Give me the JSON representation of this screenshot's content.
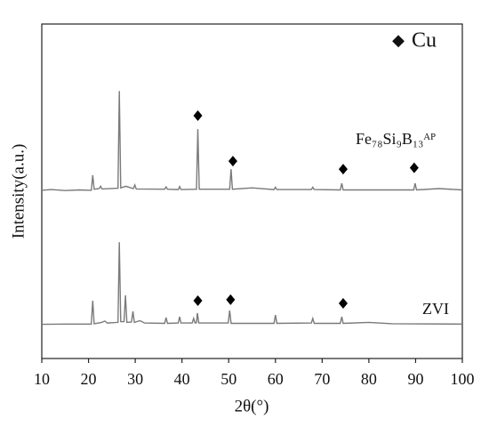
{
  "chart_data": {
    "type": "line",
    "xlabel": "2θ(°)",
    "ylabel": "Intensity(a.u.)",
    "xlim": [
      10,
      100
    ],
    "xticks": [
      10,
      20,
      30,
      40,
      50,
      60,
      70,
      80,
      90,
      100
    ],
    "ylim": [
      0,
      100
    ],
    "legend": {
      "marker": "◆",
      "label": "Cu",
      "position": "upper right"
    },
    "series": [
      {
        "name": "Fe₇₈Si₉B₁₃ᴬᴾ",
        "color": "#7a7a7a",
        "x": [
          10,
          12,
          15,
          18,
          20.6,
          20.9,
          21.2,
          22.3,
          22.6,
          22.9,
          26.3,
          26.6,
          26.9,
          28,
          29.6,
          29.9,
          30.2,
          36.3,
          36.6,
          36.9,
          39.2,
          39.5,
          39.8,
          43.1,
          43.4,
          43.7,
          50.2,
          50.5,
          50.8,
          55,
          59.7,
          60,
          60.3,
          67.7,
          68,
          68.3,
          73.9,
          74.2,
          74.5,
          89.6,
          89.9,
          90.2,
          95,
          100
        ],
        "values": [
          50.3,
          50.5,
          50.2,
          50.4,
          50.3,
          54.8,
          50.6,
          50.8,
          51.5,
          50.7,
          50.9,
          80,
          51,
          51.5,
          50.8,
          51.9,
          50.7,
          50.6,
          51.3,
          50.6,
          50.5,
          51.4,
          50.5,
          50.6,
          68.6,
          50.6,
          50.6,
          56.6,
          50.6,
          51,
          50.5,
          51.2,
          50.5,
          50.5,
          51.2,
          50.5,
          50.4,
          52.4,
          50.4,
          50.4,
          52.4,
          50.4,
          50.8,
          50.4
        ],
        "markers": {
          "x": [
            43.4,
            50.9,
            74.5,
            89.7
          ],
          "y": [
            72.6,
            59,
            56.6,
            57
          ]
        }
      },
      {
        "name": "ZVI",
        "color": "#7a7a7a",
        "x": [
          10,
          15,
          20.6,
          20.9,
          21.2,
          22.8,
          23.5,
          24,
          26.3,
          26.6,
          26.9,
          27.6,
          27.9,
          28.2,
          29.2,
          29.5,
          29.8,
          31,
          32,
          36.3,
          36.6,
          36.9,
          39.2,
          39.5,
          39.8,
          42.2,
          42.5,
          42.8,
          43.1,
          43.3,
          43.6,
          49.9,
          50.2,
          50.5,
          59.7,
          60,
          60.3,
          67.7,
          68,
          68.3,
          73.9,
          74.2,
          74.5,
          80,
          85,
          100
        ],
        "values": [
          10.2,
          10.3,
          10.3,
          17.3,
          10.4,
          10.8,
          11.2,
          10.6,
          10.8,
          34.8,
          11,
          11,
          18.9,
          10.8,
          10.9,
          14.1,
          10.8,
          11.3,
          10.6,
          10.5,
          12.2,
          10.5,
          10.6,
          12.5,
          10.6,
          10.6,
          12,
          10.6,
          10.7,
          13.6,
          10.6,
          10.6,
          14.4,
          10.5,
          10.5,
          13,
          10.5,
          10.6,
          12,
          10.5,
          10.5,
          12.5,
          10.5,
          10.8,
          10.4,
          10.3
        ],
        "markers": {
          "x": [
            43.4,
            50.4,
            74.5
          ],
          "y": [
            17.3,
            17.6,
            16.5
          ]
        }
      }
    ]
  }
}
